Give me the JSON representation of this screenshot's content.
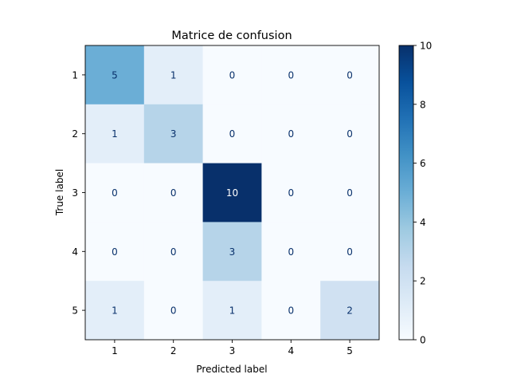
{
  "chart_data": {
    "type": "heatmap",
    "title": "Matrice de confusion",
    "xlabel": "Predicted label",
    "ylabel": "True label",
    "x_categories": [
      "1",
      "2",
      "3",
      "4",
      "5"
    ],
    "y_categories": [
      "1",
      "2",
      "3",
      "4",
      "5"
    ],
    "values": [
      [
        5,
        1,
        0,
        0,
        0
      ],
      [
        1,
        3,
        0,
        0,
        0
      ],
      [
        0,
        0,
        10,
        0,
        0
      ],
      [
        0,
        0,
        3,
        0,
        0
      ],
      [
        1,
        0,
        1,
        0,
        2
      ]
    ],
    "colormap": "Blues",
    "vmin": 0,
    "vmax": 10,
    "colorbar_ticks": [
      "0",
      "2",
      "4",
      "6",
      "8",
      "10"
    ],
    "grid": false
  }
}
